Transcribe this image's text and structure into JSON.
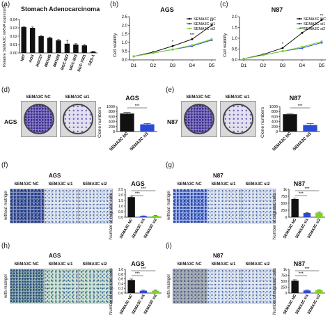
{
  "panels": {
    "a": {
      "label": "(a)"
    },
    "b": {
      "label": "(b)"
    },
    "c": {
      "label": "(c)"
    },
    "d": {
      "label": "(d)",
      "side": "AGS",
      "img_labels": [
        "SEMA3C NC",
        "SEMA3C si1"
      ]
    },
    "e": {
      "label": "(e)",
      "side": "N87",
      "img_labels": [
        "SEMA3C NC",
        "SEMA3C si1"
      ]
    },
    "f": {
      "label": "(f)",
      "group": "AGS",
      "side": "without matrigel",
      "img_labels": [
        "SEMA3C NC",
        "SEMA3C si1",
        "SEMA3C si2"
      ]
    },
    "g": {
      "label": "(g)",
      "group": "N87",
      "side": "without matrigel",
      "img_labels": [
        "SEMA3C NC",
        "SEMA3C si1",
        "SEMA3C si2"
      ]
    },
    "h": {
      "label": "(h)",
      "group": "AGS",
      "side": "with matrigel",
      "img_labels": [
        "SEMA3C NC",
        "SEMA3C si1",
        "SEMA3C si2"
      ]
    },
    "i": {
      "label": "(i)",
      "group": "N87",
      "side": "with matrigel",
      "img_labels": [
        "SEMA3C NC",
        "SEMA3C si1",
        "SEMA3C si2"
      ]
    }
  },
  "colors": {
    "black": "#111111",
    "blue": "#2b4bd6",
    "green": "#7ed321"
  },
  "chart_data": [
    {
      "id": "a",
      "type": "bar",
      "title": "Stomach Adenocarcinoma",
      "ylabel": "Relative SEMA3C mRNA expression",
      "categories": [
        "N87",
        "AGS",
        "HGC27",
        "MKN45",
        "MKN28",
        "BGC-823",
        "MGC-803",
        "SGC-7901",
        "GES-1"
      ],
      "values": [
        0.031,
        0.03,
        0.02,
        0.018,
        0.015,
        0.011,
        0.01,
        0.009,
        0.0015
      ],
      "errors": [
        0.001,
        0.001,
        0.001,
        0.001,
        0.001,
        0.004,
        0.001,
        0.001,
        0.0005
      ],
      "ylim": [
        0,
        0.04
      ],
      "yticks": [
        "0.00",
        "0.01",
        "0.02",
        "0.03",
        "0.04"
      ],
      "color": "#111111"
    },
    {
      "id": "b",
      "type": "line",
      "title": "AGS",
      "ylabel": "Cell viability",
      "x": [
        "D1",
        "D2",
        "D3",
        "D4",
        "D5"
      ],
      "ylim": [
        0,
        2.5
      ],
      "yticks": [
        "0.0",
        "0.5",
        "1.0",
        "1.5",
        "2.0",
        "2.5"
      ],
      "legend_position": "top-left",
      "series": [
        {
          "name": "SEMA3C NC",
          "color": "#111111",
          "values": [
            0.2,
            0.45,
            0.8,
            1.2,
            2.0
          ]
        },
        {
          "name": "SEMA3C si1",
          "color": "#2b4bd6",
          "values": [
            0.2,
            0.4,
            0.6,
            0.8,
            1.15
          ]
        },
        {
          "name": "SEMA3C si2",
          "color": "#7ed321",
          "values": [
            0.2,
            0.4,
            0.6,
            0.85,
            1.2
          ]
        }
      ],
      "significance": [
        "*",
        "***",
        "**"
      ]
    },
    {
      "id": "c",
      "type": "line",
      "title": "N87",
      "ylabel": "Cell viability",
      "x": [
        "D1",
        "D2",
        "D3",
        "D4",
        "D5"
      ],
      "ylim": [
        0,
        2.0
      ],
      "yticks": [
        "0.0",
        "0.5",
        "1.0",
        "1.5",
        "2.0"
      ],
      "legend_position": "top-left",
      "series": [
        {
          "name": "SEMA3C NC",
          "color": "#111111",
          "values": [
            0.05,
            0.25,
            0.55,
            1.25,
            1.85
          ]
        },
        {
          "name": "SEMA3C si1",
          "color": "#2b4bd6",
          "values": [
            0.05,
            0.22,
            0.4,
            0.55,
            0.8
          ]
        },
        {
          "name": "SEMA3C si2",
          "color": "#7ed321",
          "values": [
            0.05,
            0.22,
            0.4,
            0.6,
            0.85
          ]
        }
      ],
      "significance": [
        "*",
        "***",
        "**"
      ]
    },
    {
      "id": "d",
      "type": "bar",
      "title": "AGS",
      "ylabel": "Clone numbers",
      "categories": [
        "SEMA3C NC",
        "SEMA3C si1"
      ],
      "values": [
        720,
        290
      ],
      "errors": [
        40,
        30
      ],
      "ylim": [
        0,
        1000
      ],
      "yticks": [
        "0",
        "200",
        "400",
        "600",
        "800",
        "1000"
      ],
      "colors": [
        "#111111",
        "#2b4bd6"
      ],
      "significance": "***"
    },
    {
      "id": "e",
      "type": "bar",
      "title": "N87",
      "ylabel": "Clone numbers",
      "categories": [
        "SEMA3C NC",
        "SEMA3C si1"
      ],
      "values": [
        690,
        260
      ],
      "errors": [
        30,
        60
      ],
      "ylim": [
        0,
        1000
      ],
      "yticks": [
        "0",
        "200",
        "400",
        "600",
        "800",
        "1000"
      ],
      "colors": [
        "#111111",
        "#2b4bd6"
      ],
      "significance": "***"
    },
    {
      "id": "f",
      "type": "bar",
      "title": "AGS",
      "ylabel": "Number of migrated cells",
      "categories": [
        "SEMA3C NC",
        "SEMA3C si1",
        "SEMA3C si2"
      ],
      "values": [
        1.8,
        0.1,
        0.12
      ],
      "errors": [
        0.08,
        0.02,
        0.02
      ],
      "ylim": [
        0,
        2.5
      ],
      "yticks": [
        "0.0",
        "0.5",
        "1.0",
        "1.5",
        "2.0",
        "2.5"
      ],
      "colors": [
        "#111111",
        "#2b4bd6",
        "#7ed321"
      ],
      "significance": [
        "***",
        "***"
      ]
    },
    {
      "id": "g",
      "type": "bar",
      "title": "N87",
      "ylabel": "Number of migrated cells",
      "categories": [
        "SEMA3C NC",
        "SEMA3C si1",
        "SEMA3C si2"
      ],
      "values": [
        650,
        150,
        160
      ],
      "errors": [
        40,
        20,
        20
      ],
      "ylim": [
        0,
        1000
      ],
      "yticks": [
        "0",
        "250",
        "500",
        "750",
        "1k"
      ],
      "colors": [
        "#111111",
        "#2b4bd6",
        "#7ed321"
      ],
      "significance": [
        "***",
        "***"
      ]
    },
    {
      "id": "h",
      "type": "bar",
      "title": "AGS",
      "ylabel": "Number of migrated cells",
      "categories": [
        "SEMA3C NC",
        "SEMA3C si1",
        "SEMA3C si2"
      ],
      "values": [
        0.55,
        0.1,
        0.1
      ],
      "errors": [
        0.04,
        0.02,
        0.02
      ],
      "ylim": [
        0,
        1.0
      ],
      "yticks": [
        "0.0",
        "0.2",
        "0.4",
        "0.6",
        "0.8",
        "1.0"
      ],
      "colors": [
        "#111111",
        "#2b4bd6",
        "#7ed321"
      ],
      "significance": [
        "***",
        "***"
      ]
    },
    {
      "id": "i",
      "type": "bar",
      "title": "N87",
      "ylabel": "Number of migrated cells",
      "categories": [
        "SEMA3C NC",
        "SEMA3C si1",
        "SEMA3C si2"
      ],
      "values": [
        520,
        110,
        120
      ],
      "errors": [
        40,
        15,
        15
      ],
      "ylim": [
        0,
        1000
      ],
      "yticks": [
        "0",
        "250",
        "500",
        "750",
        "1k"
      ],
      "colors": [
        "#111111",
        "#2b4bd6",
        "#7ed321"
      ],
      "significance": [
        "***",
        "***"
      ]
    }
  ]
}
